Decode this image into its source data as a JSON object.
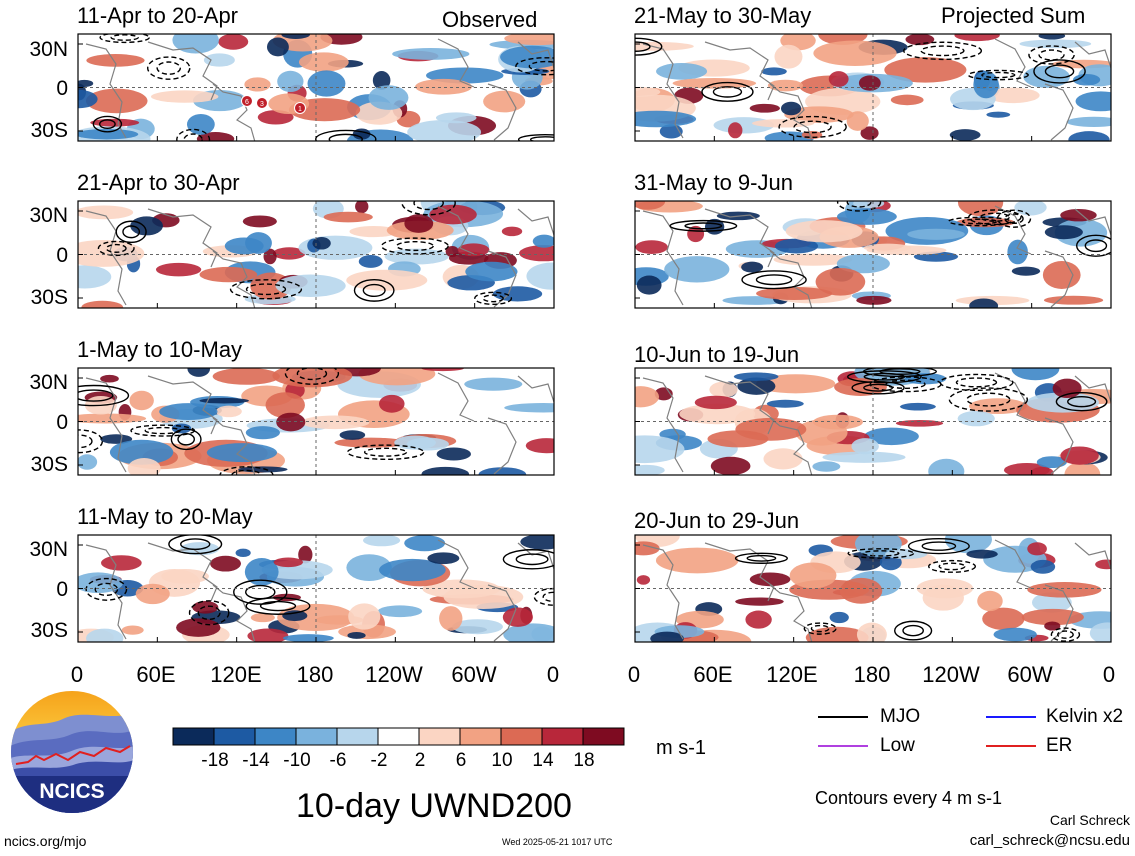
{
  "side_labels": {
    "left": "Observed",
    "right": "Projected Sum"
  },
  "y_labels": [
    "30N",
    "0",
    "30S"
  ],
  "x_labels": [
    "0",
    "60E",
    "120E",
    "180",
    "120W",
    "60W",
    "0"
  ],
  "units": "m s-1",
  "main_title": "10-day UWND200",
  "contours_note": "Contours every 4 m s-1",
  "author": "Carl Schreck",
  "email": "carl_schreck@ncsu.edu",
  "site": "ncics.org/mjo",
  "timestamp": "Wed 2025-05-21 1017 UTC",
  "logo_text": "NCICS",
  "mjo_markers": [
    "6",
    "3",
    "1"
  ],
  "legend": [
    {
      "label": "MJO",
      "color": "#000000"
    },
    {
      "label": "Kelvin x2",
      "color": "#1a1aff"
    },
    {
      "label": "Low",
      "color": "#b040e0"
    },
    {
      "label": "ER",
      "color": "#e02020"
    }
  ],
  "colorbar": {
    "ticks": [
      "-18",
      "-14",
      "-10",
      "-6",
      "-2",
      "2",
      "6",
      "10",
      "14",
      "18"
    ],
    "colors": [
      "#0b2a5a",
      "#1d5aa3",
      "#3d86c6",
      "#7ab2dd",
      "#b7d6ec",
      "#ffffff",
      "#fbd5c3",
      "#f2a283",
      "#dc6a54",
      "#b8273a",
      "#7e0b21"
    ]
  },
  "chart_data": {
    "type": "heatmap",
    "variable": "UWND200",
    "units": "m s-1",
    "x_range": [
      "0",
      "0"
    ],
    "y_range": [
      "30S",
      "30N"
    ],
    "panels": [
      {
        "column": "Observed",
        "period": "11-Apr to 20-Apr"
      },
      {
        "column": "Observed",
        "period": "21-Apr to 30-Apr"
      },
      {
        "column": "Observed",
        "period": "1-May to 10-May"
      },
      {
        "column": "Observed",
        "period": "11-May to 20-May"
      },
      {
        "column": "Projected Sum",
        "period": "21-May to 30-May"
      },
      {
        "column": "Projected Sum",
        "period": "31-May to 9-Jun"
      },
      {
        "column": "Projected Sum",
        "period": "10-Jun to 19-Jun"
      },
      {
        "column": "Projected Sum",
        "period": "20-Jun to 29-Jun"
      }
    ]
  }
}
